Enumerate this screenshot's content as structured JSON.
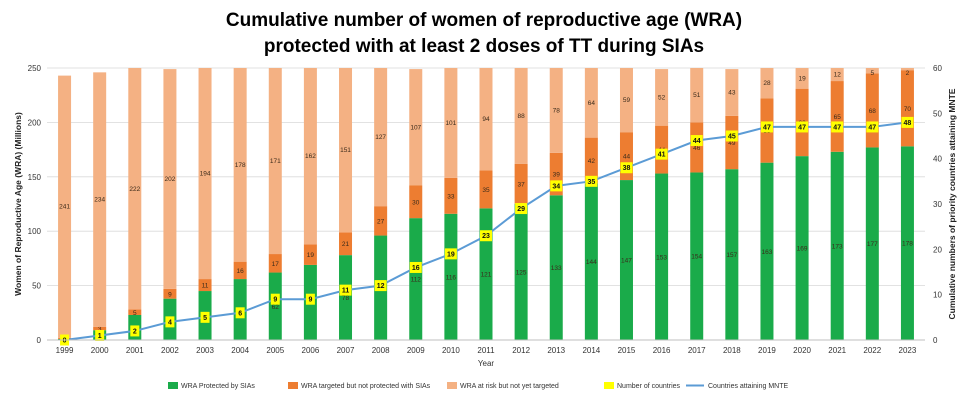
{
  "chart_data": {
    "type": "bar",
    "title_lines": [
      "Cumulative number of women of reproductive age (WRA)",
      "protected with at least 2 doses of TT during SIAs"
    ],
    "xlabel": "Year",
    "ylabel": "Women of Reproductive Age (WRA) (Millions)",
    "y2label": "Cumulative numbers of priority countries attaining MNTE",
    "ylim": [
      0,
      250
    ],
    "y2lim": [
      0,
      60
    ],
    "yticks": [
      "0",
      "50",
      "100",
      "150",
      "200",
      "250"
    ],
    "y2ticks": [
      "0",
      "10",
      "20",
      "30",
      "40",
      "50",
      "60"
    ],
    "grid": true,
    "legend_position": "bottom",
    "categories": [
      "1999",
      "2000",
      "2001",
      "2002",
      "2003",
      "2004",
      "2005",
      "2006",
      "2007",
      "2008",
      "2009",
      "2010",
      "2011",
      "2012",
      "2013",
      "2014",
      "2015",
      "2016",
      "2017",
      "2018",
      "2019",
      "2020",
      "2021",
      "2022",
      "2023"
    ],
    "series": [
      {
        "name": "WRA Protected by SIAs",
        "color": "#1aab4a",
        "values": [
          1,
          9,
          23,
          38,
          45,
          56,
          62,
          69,
          78,
          96,
          112,
          116,
          121,
          125,
          133,
          144,
          147,
          153,
          154,
          157,
          163,
          169,
          173,
          177,
          178
        ],
        "labels": [
          "1",
          "",
          "23",
          "",
          "45",
          "",
          "62",
          "",
          "78",
          "",
          "112",
          "116",
          "121",
          "125",
          "133",
          "144",
          "147",
          "153",
          "154",
          "157",
          "163",
          "169",
          "173",
          "177",
          "178"
        ]
      },
      {
        "name": "WRA targeted but not protected with SIAs",
        "color": "#ed7d31",
        "values": [
          1,
          3,
          5,
          9,
          11,
          16,
          17,
          19,
          21,
          27,
          30,
          33,
          35,
          37,
          39,
          42,
          44,
          44,
          46,
          49,
          59,
          62,
          65,
          68,
          70
        ],
        "labels": [
          "1",
          "3",
          "5",
          "9",
          "11",
          "16",
          "17",
          "19",
          "21",
          "27",
          "30",
          "33",
          "35",
          "37",
          "39",
          "42",
          "44",
          "44",
          "46",
          "49",
          "59",
          "62",
          "65",
          "68",
          "70"
        ]
      },
      {
        "name": "WRA at risk but not yet targeted",
        "color": "#f4b183",
        "values": [
          241,
          234,
          222,
          202,
          194,
          178,
          171,
          162,
          151,
          127,
          107,
          101,
          94,
          88,
          78,
          64,
          59,
          52,
          51,
          43,
          28,
          19,
          12,
          5,
          2
        ],
        "labels": [
          "241",
          "234",
          "222",
          "202",
          "194",
          "178",
          "171",
          "162",
          "151",
          "127",
          "107",
          "101",
          "94",
          "88",
          "78",
          "64",
          "59",
          "52",
          "51",
          "43",
          "28",
          "19",
          "12",
          "5",
          "2"
        ]
      }
    ],
    "count_series": {
      "name": "Number of countries",
      "color": "#ffff00",
      "values": [
        0,
        1,
        2,
        4,
        5,
        6,
        9,
        9,
        11,
        12,
        16,
        19,
        23,
        29,
        34,
        35,
        38,
        41,
        44,
        45,
        47,
        47,
        47,
        47,
        48
      ],
      "labels": [
        "0",
        "1",
        "2",
        "4",
        "5",
        "6",
        "9",
        "9",
        "11",
        "12",
        "16",
        "19",
        "23",
        "29",
        "34",
        "35",
        "38",
        "41",
        "44",
        "45",
        "47",
        "47",
        "47",
        "47",
        "48"
      ]
    },
    "line_series": {
      "name": "Countries attaining MNTE",
      "color": "#5b9bd5",
      "values": [
        0,
        1,
        2,
        4,
        5,
        6,
        9,
        9,
        11,
        12,
        16,
        19,
        23,
        29,
        34,
        35,
        38,
        41,
        44,
        45,
        47,
        47,
        47,
        47,
        48
      ]
    }
  }
}
